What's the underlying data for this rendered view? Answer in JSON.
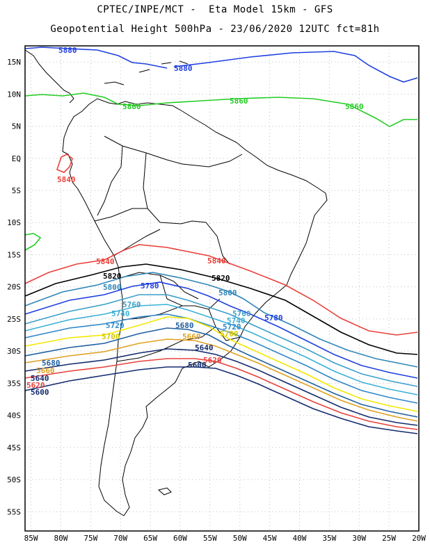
{
  "header": {
    "line1": "CPTEC/INPE/MCT -  Eta Model 15km - GFS",
    "line2": "Geopotential Height 500hPa - 23/06/2020 12UTC fct=81h"
  },
  "axes": {
    "lat_ticks": [
      "15N",
      "10N",
      "5N",
      "EQ",
      "5S",
      "10S",
      "15S",
      "20S",
      "25S",
      "30S",
      "35S",
      "40S",
      "45S",
      "50S",
      "55S"
    ],
    "lon_ticks": [
      "85W",
      "80W",
      "75W",
      "70W",
      "65W",
      "60W",
      "55W",
      "50W",
      "45W",
      "40W",
      "35W",
      "30W",
      "25W",
      "20W"
    ],
    "lat_range": [
      17.5,
      -58
    ],
    "lon_range": [
      -86,
      -20
    ]
  },
  "colors": {
    "land": "#000000",
    "frame": "#000000",
    "grid": "#bdbdbd"
  },
  "contours": [
    {
      "value": "5880",
      "color": "#1f3fe0",
      "labels": [
        "5880",
        "5880"
      ]
    },
    {
      "value": "5860",
      "color": "#22cc22",
      "labels": [
        "5860",
        "5860",
        "5860"
      ]
    },
    {
      "value": "5840",
      "color": "#e8403a",
      "labels": [
        "5840",
        "5840",
        "5840"
      ]
    },
    {
      "value": "5820",
      "color": "#000000",
      "labels": [
        "5820",
        "5820"
      ]
    },
    {
      "value": "5800",
      "color": "#2e86b8",
      "labels": [
        "5800",
        "5800"
      ]
    },
    {
      "value": "5780",
      "color": "#1f3fe0",
      "labels": [
        "5780",
        "5780"
      ]
    },
    {
      "value": "5760",
      "color": "#3a9ec8",
      "labels": [
        "5760",
        "5760"
      ]
    },
    {
      "value": "5740",
      "color": "#3ab0d6",
      "labels": [
        "5740",
        "5740"
      ]
    },
    {
      "value": "5720",
      "color": "#2e86c8",
      "labels": [
        "5720",
        "5720"
      ]
    },
    {
      "value": "5700",
      "color": "#f2e800",
      "labels": [
        "5700",
        "5700"
      ]
    },
    {
      "value": "5680",
      "color": "#1f5fa0",
      "labels": [
        "5680",
        "5680"
      ]
    },
    {
      "value": "5660",
      "color": "#e0a020",
      "labels": [
        "5660",
        "5660"
      ]
    },
    {
      "value": "5640",
      "color": "#122a6e",
      "labels": [
        "5640",
        "5640"
      ]
    },
    {
      "value": "5620",
      "color": "#e8403a",
      "labels": [
        "5620",
        "5620"
      ]
    },
    {
      "value": "5600",
      "color": "#122a6e",
      "labels": [
        "5600",
        "5600"
      ]
    }
  ]
}
